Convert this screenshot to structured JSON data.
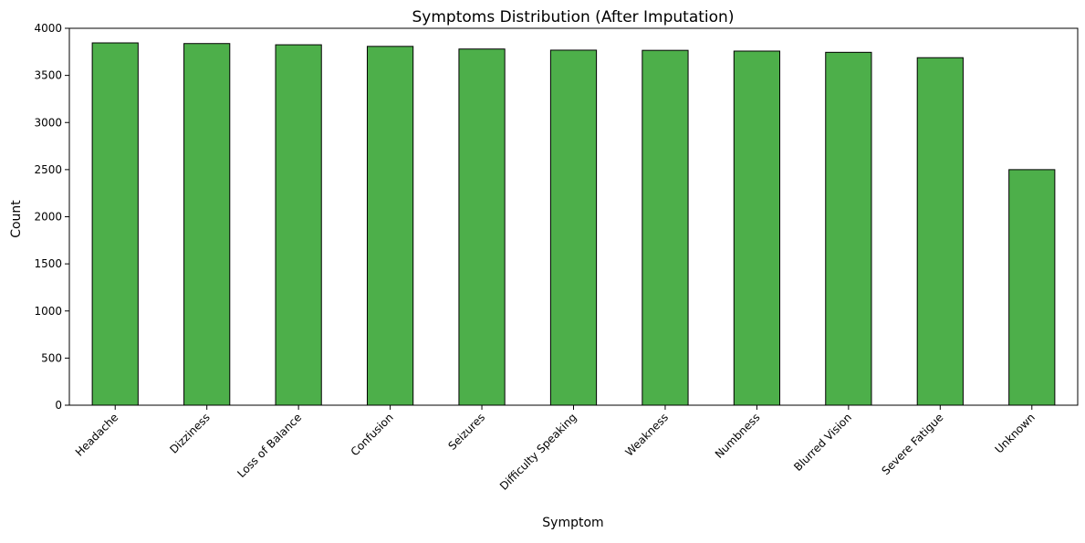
{
  "chart_data": {
    "type": "bar",
    "title": "Symptoms Distribution (After Imputation)",
    "xlabel": "Symptom",
    "ylabel": "Count",
    "categories": [
      "Headache",
      "Dizziness",
      "Loss of Balance",
      "Confusion",
      "Seizures",
      "Difficulty Speaking",
      "Weakness",
      "Numbness",
      "Blurred Vision",
      "Severe Fatigue",
      "Unknown"
    ],
    "values": [
      3845,
      3838,
      3825,
      3808,
      3780,
      3768,
      3766,
      3758,
      3745,
      3688,
      2500
    ],
    "ylim": [
      0,
      4000
    ],
    "yticks": [
      0,
      500,
      1000,
      1500,
      2000,
      2500,
      3000,
      3500,
      4000
    ],
    "bar_color": "#4daf4a",
    "edge_color": "#000000",
    "grid": false,
    "legend": "none"
  }
}
